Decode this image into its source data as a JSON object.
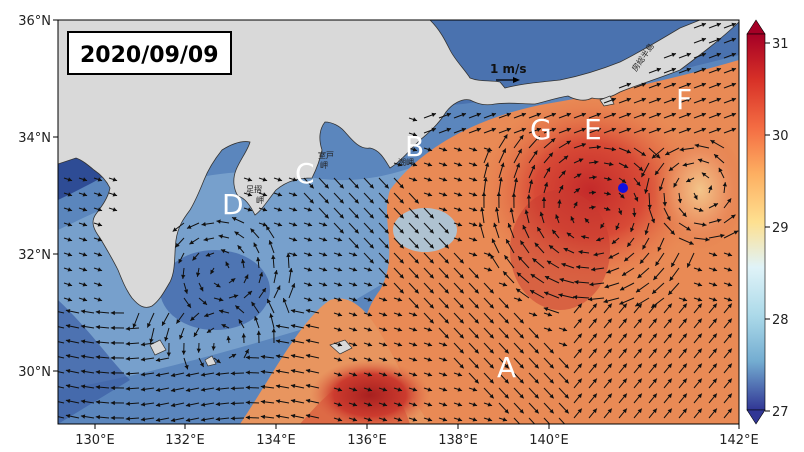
{
  "date": "2020/09/09",
  "scale_label": "1 m/s",
  "lon_ticks": [
    "130°E",
    "132°E",
    "134°E",
    "136°E",
    "138°E",
    "140°E",
    "142°E"
  ],
  "lat_ticks": [
    "36°N",
    "34°N",
    "32°N",
    "30°N"
  ],
  "colorbar": {
    "ticks": [
      "31",
      "30",
      "29",
      "28",
      "27"
    ],
    "min": 27,
    "max": 31,
    "palette": [
      "#313695",
      "#4575b4",
      "#74add1",
      "#abd9e9",
      "#e0f3f8",
      "#fee090",
      "#fdae61",
      "#f46d43",
      "#d73027",
      "#a50026"
    ]
  },
  "labels": {
    "A": "A",
    "B": "B",
    "C": "C",
    "D": "D",
    "E": "E",
    "F": "F",
    "G": "G"
  },
  "places": {
    "muroto": "室戸\n岬",
    "ashizuri": "足摺\n岬",
    "shiono": "潮岬",
    "boso": "房総半島"
  },
  "colors": {
    "land": "#d9d9d9",
    "marker": "#1010e0"
  }
}
